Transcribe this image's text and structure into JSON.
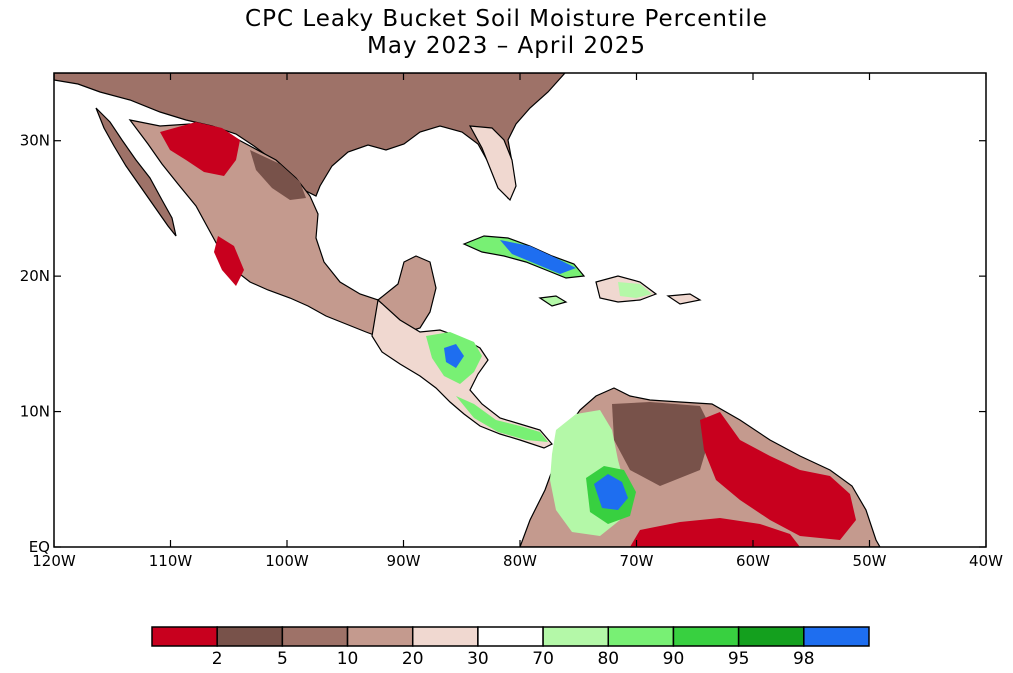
{
  "title": "CPC Leaky Bucket Soil Moisture Percentile",
  "subtitle": "May 2023 – April 2025",
  "map": {
    "lon_range": [
      -120,
      -40
    ],
    "lat_range": [
      0,
      35
    ],
    "x_ticks": [
      {
        "lon": -120,
        "label": "120W"
      },
      {
        "lon": -110,
        "label": "110W"
      },
      {
        "lon": -100,
        "label": "100W"
      },
      {
        "lon": -90,
        "label": "90W"
      },
      {
        "lon": -80,
        "label": "80W"
      },
      {
        "lon": -70,
        "label": "70W"
      },
      {
        "lon": -60,
        "label": "60W"
      },
      {
        "lon": -50,
        "label": "50W"
      },
      {
        "lon": -40,
        "label": "40W"
      }
    ],
    "y_ticks": [
      {
        "lat": 30,
        "label": "30N"
      },
      {
        "lat": 20,
        "label": "20N"
      },
      {
        "lat": 10,
        "label": "10N"
      },
      {
        "lat": 0,
        "label": "EQ"
      }
    ]
  },
  "colorbar": {
    "colors": [
      "#c8001e",
      "#78524a",
      "#9e7268",
      "#c49a8e",
      "#f0d8d0",
      "#ffffff",
      "#b4f8a8",
      "#78f074",
      "#38d040",
      "#14a01e",
      "#1e6ef0"
    ],
    "labels": [
      "2",
      "5",
      "10",
      "20",
      "30",
      "70",
      "80",
      "90",
      "95",
      "98"
    ]
  },
  "colors": {
    "land_dry_extreme": "#c8001e",
    "land_dry_severe": "#78524a",
    "land_dry_moderate": "#9e7268",
    "land_dry_light": "#c49a8e",
    "land_dry_faint": "#f0d8d0",
    "land_wet_light": "#b4f8a8",
    "land_wet": "#78f074",
    "land_wet_severe": "#38d040",
    "land_wet_extreme": "#1e6ef0",
    "border": "#000000"
  }
}
